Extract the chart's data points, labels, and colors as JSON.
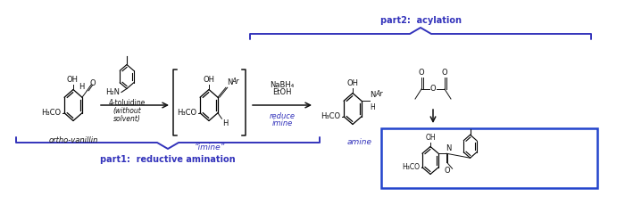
{
  "bg_color": "#ffffff",
  "blue": "#3333bb",
  "black": "#111111",
  "part1_label": "part1:  reductive amination",
  "part2_label": "part2:  acylation",
  "imine_label": "“imine”",
  "amine_label": "amine",
  "vanillin_label": "ortho-vanillin",
  "toluidine_label": "4-toluidine",
  "fig_w": 7.0,
  "fig_h": 2.48,
  "dpi": 100
}
